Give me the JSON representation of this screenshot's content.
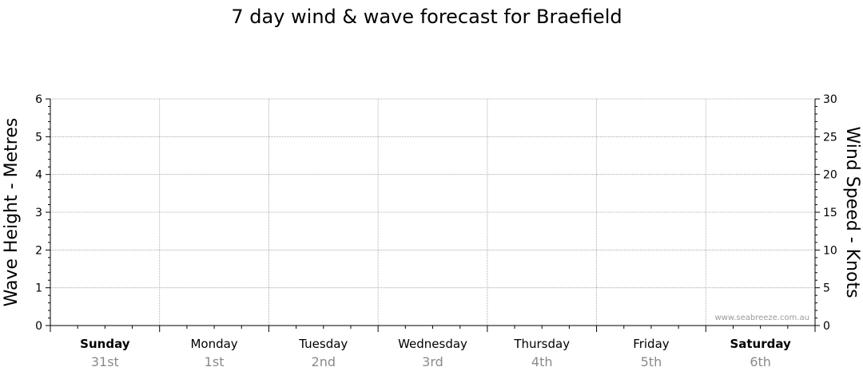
{
  "chart_data": {
    "type": "line",
    "title": "7 day wind & wave forecast for Braefield",
    "ylabel_left": "Wave Height - Metres",
    "ylabel_right": "Wind Speed - Knots",
    "ylim_left": [
      0,
      6
    ],
    "ylim_right": [
      0,
      30
    ],
    "left_ticks": [
      "0",
      "1",
      "2",
      "3",
      "4",
      "5",
      "6"
    ],
    "right_ticks": [
      "0",
      "5",
      "10",
      "15",
      "20",
      "25",
      "30"
    ],
    "days": [
      {
        "day": "Sunday",
        "date": "31st",
        "weekend": true
      },
      {
        "day": "Monday",
        "date": "1st",
        "weekend": false
      },
      {
        "day": "Tuesday",
        "date": "2nd",
        "weekend": false
      },
      {
        "day": "Wednesday",
        "date": "3rd",
        "weekend": false
      },
      {
        "day": "Thursday",
        "date": "4th",
        "weekend": false
      },
      {
        "day": "Friday",
        "date": "5th",
        "weekend": false
      },
      {
        "day": "Saturday",
        "date": "6th",
        "weekend": true
      }
    ],
    "series": [],
    "grid": true,
    "credit": "www.seabreeze.com.au"
  }
}
